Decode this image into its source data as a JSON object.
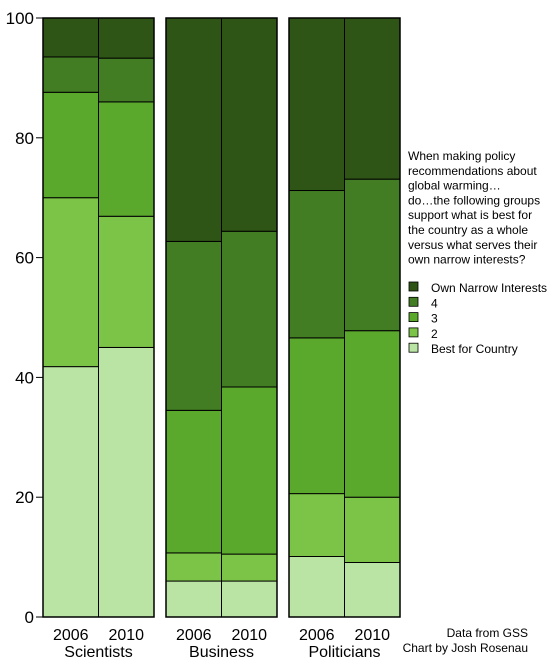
{
  "chart_data": {
    "type": "bar",
    "stacked": true,
    "ylim": [
      0,
      100
    ],
    "yticks": [
      0,
      20,
      40,
      60,
      80,
      100
    ],
    "years": [
      "2006",
      "2010"
    ],
    "groups": [
      {
        "name": "Scientists",
        "bars": [
          {
            "year": "2006",
            "values": [
              41.8,
              28.2,
              17.6,
              5.9,
              6.5
            ]
          },
          {
            "year": "2010",
            "values": [
              45.0,
              21.9,
              19.1,
              7.3,
              6.7
            ]
          }
        ]
      },
      {
        "name": "Business",
        "bars": [
          {
            "year": "2006",
            "values": [
              6.0,
              4.7,
              23.8,
              28.2,
              37.3
            ]
          },
          {
            "year": "2010",
            "values": [
              6.0,
              4.5,
              27.9,
              26.0,
              35.6
            ]
          }
        ]
      },
      {
        "name": "Politicians",
        "bars": [
          {
            "year": "2006",
            "values": [
              10.1,
              10.5,
              26.0,
              24.6,
              28.8
            ]
          },
          {
            "year": "2010",
            "values": [
              9.1,
              10.9,
              27.8,
              25.3,
              26.9
            ]
          }
        ]
      }
    ],
    "series": [
      {
        "name": "Best for Country",
        "color": "#b9e4a4"
      },
      {
        "name": "2",
        "color": "#7cc448"
      },
      {
        "name": "3",
        "color": "#5aa82c"
      },
      {
        "name": "4",
        "color": "#427d24"
      },
      {
        "name": "Own Narrow Interests",
        "color": "#2e5516"
      }
    ],
    "legend_order": [
      "Own Narrow Interests",
      "4",
      "3",
      "2",
      "Best for Country"
    ],
    "legend_title_lines": [
      "When making policy",
      "recommendations about",
      "global warming…",
      "do…the following groups",
      "support what is best for",
      "the country as a whole",
      "versus what serves their",
      "own narrow interests?"
    ],
    "legend_placement": "right",
    "grid": false
  },
  "credits": {
    "line1": "Data from GSS",
    "line2": "Chart by Josh Rosenau"
  }
}
